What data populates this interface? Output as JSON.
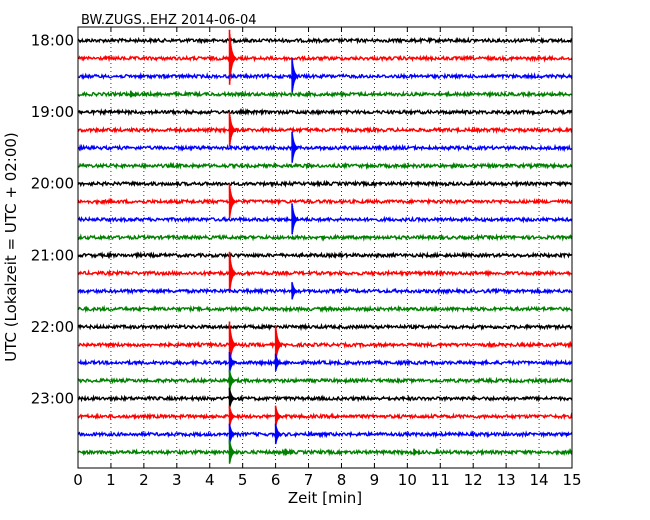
{
  "chart_data": {
    "type": "line",
    "title": "BW.ZUGS..EHZ 2014-06-04",
    "xlabel": "Zeit  [min]",
    "ylabel": "UTC (Lokalzeit = UTC + 02:00)",
    "xlim": [
      0,
      15
    ],
    "x_ticks": [
      "0",
      "1",
      "2",
      "3",
      "4",
      "5",
      "6",
      "7",
      "8",
      "9",
      "10",
      "11",
      "12",
      "13",
      "14",
      "15"
    ],
    "y_ticks": [
      {
        "label": "18:00",
        "row": 0
      },
      {
        "label": "19:00",
        "row": 4
      },
      {
        "label": "20:00",
        "row": 8
      },
      {
        "label": "21:00",
        "row": 12
      },
      {
        "label": "22:00",
        "row": 16
      },
      {
        "label": "23:00",
        "row": 20
      }
    ],
    "grid": true,
    "row_interval_minutes": 15,
    "row_colors": [
      "#000000",
      "#ff0000",
      "#0000ff",
      "#008000"
    ],
    "series": [
      {
        "row": 0,
        "start": "18:00",
        "events": []
      },
      {
        "row": 1,
        "start": "18:15",
        "events": [
          {
            "minute": 4.6,
            "amplitude_rows": 1.6
          }
        ]
      },
      {
        "row": 2,
        "start": "18:30",
        "events": [
          {
            "minute": 6.5,
            "amplitude_rows": 1.0
          }
        ]
      },
      {
        "row": 3,
        "start": "18:45",
        "events": [
          {
            "minute": 1.6,
            "amplitude_rows": 0.2
          }
        ]
      },
      {
        "row": 4,
        "start": "19:00",
        "events": []
      },
      {
        "row": 5,
        "start": "19:15",
        "events": [
          {
            "minute": 4.6,
            "amplitude_rows": 1.0
          }
        ]
      },
      {
        "row": 6,
        "start": "19:30",
        "events": [
          {
            "minute": 6.5,
            "amplitude_rows": 0.9
          }
        ]
      },
      {
        "row": 7,
        "start": "19:45",
        "events": []
      },
      {
        "row": 8,
        "start": "20:00",
        "events": []
      },
      {
        "row": 9,
        "start": "20:15",
        "events": [
          {
            "minute": 4.6,
            "amplitude_rows": 1.0
          }
        ]
      },
      {
        "row": 10,
        "start": "20:30",
        "events": [
          {
            "minute": 6.5,
            "amplitude_rows": 0.9
          }
        ]
      },
      {
        "row": 11,
        "start": "20:45",
        "events": []
      },
      {
        "row": 12,
        "start": "21:00",
        "events": []
      },
      {
        "row": 13,
        "start": "21:15",
        "events": [
          {
            "minute": 4.6,
            "amplitude_rows": 1.2
          }
        ]
      },
      {
        "row": 14,
        "start": "21:30",
        "events": [
          {
            "minute": 6.5,
            "amplitude_rows": 0.5
          }
        ]
      },
      {
        "row": 15,
        "start": "21:45",
        "events": []
      },
      {
        "row": 16,
        "start": "22:00",
        "events": []
      },
      {
        "row": 17,
        "start": "22:15",
        "events": [
          {
            "minute": 4.6,
            "amplitude_rows": 1.3
          },
          {
            "minute": 6.0,
            "amplitude_rows": 1.1
          }
        ]
      },
      {
        "row": 18,
        "start": "22:30",
        "events": [
          {
            "minute": 4.6,
            "amplitude_rows": 0.6
          },
          {
            "minute": 6.0,
            "amplitude_rows": 0.5
          }
        ]
      },
      {
        "row": 19,
        "start": "22:45",
        "events": [
          {
            "minute": 4.6,
            "amplitude_rows": 0.6
          }
        ]
      },
      {
        "row": 20,
        "start": "23:00",
        "events": [
          {
            "minute": 4.6,
            "amplitude_rows": 0.6
          }
        ]
      },
      {
        "row": 21,
        "start": "23:15",
        "events": [
          {
            "minute": 4.6,
            "amplitude_rows": 0.6
          },
          {
            "minute": 6.0,
            "amplitude_rows": 0.6
          }
        ]
      },
      {
        "row": 22,
        "start": "23:30",
        "events": [
          {
            "minute": 4.6,
            "amplitude_rows": 0.6
          },
          {
            "minute": 6.0,
            "amplitude_rows": 0.6
          }
        ]
      },
      {
        "row": 23,
        "start": "23:45",
        "events": [
          {
            "minute": 4.6,
            "amplitude_rows": 0.7
          },
          {
            "minute": 6.3,
            "amplitude_rows": 0.2
          },
          {
            "minute": 10.2,
            "amplitude_rows": 0.2
          }
        ]
      }
    ]
  }
}
